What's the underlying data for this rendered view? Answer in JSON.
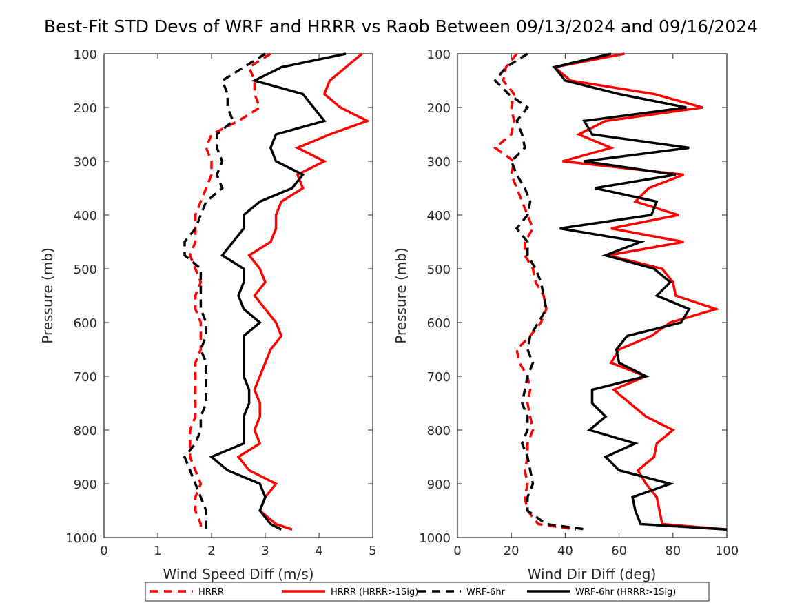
{
  "title": "Best-Fit STD Devs of WRF and HRRR vs Raob Between 09/13/2024 and 09/16/2024",
  "legend": {
    "placement": "bottom-outside",
    "entries": [
      {
        "label": "HRRR",
        "color": "#ff0000",
        "style": "dashed"
      },
      {
        "label": "HRRR (HRRR>1Sig)",
        "color": "#ff0000",
        "style": "solid"
      },
      {
        "label": "WRF-6hr",
        "color": "#000000",
        "style": "dashed"
      },
      {
        "label": "WRF-6hr (HRRR>1Sig)",
        "color": "#000000",
        "style": "solid"
      }
    ]
  },
  "chart_data": [
    {
      "type": "line",
      "orientation": "vertical-profile",
      "xlabel": "Wind Speed Diff (m/s)",
      "ylabel": "Pressure (mb)",
      "xlim": [
        0,
        5
      ],
      "ylim": [
        100,
        1000
      ],
      "y_reversed": true,
      "xticks": [
        0,
        1,
        2,
        3,
        4,
        5
      ],
      "yticks": [
        100,
        200,
        300,
        400,
        500,
        600,
        700,
        800,
        900,
        1000
      ],
      "pressure": [
        100,
        125,
        150,
        175,
        200,
        225,
        250,
        275,
        300,
        325,
        350,
        375,
        400,
        425,
        450,
        475,
        500,
        525,
        550,
        575,
        600,
        625,
        650,
        675,
        700,
        725,
        750,
        775,
        800,
        825,
        850,
        875,
        900,
        925,
        950,
        975,
        985
      ],
      "series": [
        {
          "name": "HRRR",
          "color": "#ff0000",
          "style": "dashed",
          "values": [
            3.1,
            2.7,
            2.8,
            2.8,
            2.9,
            2.5,
            2.0,
            1.9,
            2.0,
            2.0,
            1.9,
            1.8,
            1.7,
            1.7,
            1.7,
            1.6,
            1.7,
            1.8,
            1.7,
            1.7,
            1.8,
            1.8,
            1.8,
            1.7,
            1.7,
            1.7,
            1.7,
            1.7,
            1.6,
            1.6,
            1.6,
            1.7,
            1.8,
            1.7,
            1.7,
            1.8,
            1.8
          ]
        },
        {
          "name": "HRRR (HRRR>1Sig)",
          "color": "#ff0000",
          "style": "solid",
          "values": [
            4.8,
            4.5,
            4.2,
            4.1,
            4.4,
            4.9,
            4.2,
            3.6,
            4.1,
            3.6,
            3.7,
            3.3,
            3.2,
            3.2,
            3.1,
            2.7,
            2.9,
            3.0,
            2.8,
            3.0,
            3.2,
            3.3,
            3.1,
            3.0,
            2.9,
            2.8,
            2.9,
            2.9,
            2.8,
            2.9,
            2.5,
            2.7,
            3.2,
            3.0,
            2.9,
            3.2,
            3.5
          ]
        },
        {
          "name": "WRF-6hr",
          "color": "#000000",
          "style": "dashed",
          "values": [
            3.0,
            2.6,
            2.2,
            2.3,
            2.3,
            2.4,
            2.1,
            2.1,
            2.2,
            2.1,
            2.2,
            1.9,
            1.8,
            1.7,
            1.5,
            1.5,
            1.8,
            1.8,
            1.8,
            1.8,
            1.9,
            1.9,
            1.8,
            1.9,
            1.9,
            1.9,
            1.9,
            1.8,
            1.8,
            1.7,
            1.5,
            1.6,
            1.7,
            1.8,
            1.9,
            1.9,
            1.9
          ]
        },
        {
          "name": "WRF-6hr (HRRR>1Sig)",
          "color": "#000000",
          "style": "solid",
          "values": [
            4.5,
            3.3,
            2.8,
            3.7,
            3.9,
            4.1,
            3.2,
            3.1,
            3.2,
            3.7,
            3.5,
            2.9,
            2.6,
            2.6,
            2.4,
            2.2,
            2.6,
            2.6,
            2.5,
            2.6,
            2.9,
            2.6,
            2.6,
            2.6,
            2.6,
            2.7,
            2.7,
            2.6,
            2.6,
            2.6,
            2.0,
            2.3,
            2.9,
            3.0,
            2.9,
            3.1,
            3.3
          ]
        }
      ]
    },
    {
      "type": "line",
      "orientation": "vertical-profile",
      "xlabel": "Wind Dir Diff (deg)",
      "ylabel": "Pressure (mb)",
      "xlim": [
        0,
        100
      ],
      "ylim": [
        100,
        1000
      ],
      "y_reversed": true,
      "xticks": [
        0,
        20,
        40,
        60,
        80,
        100
      ],
      "yticks": [
        100,
        200,
        300,
        400,
        500,
        600,
        700,
        800,
        900,
        1000
      ],
      "pressure": [
        100,
        125,
        150,
        175,
        200,
        225,
        250,
        275,
        300,
        325,
        350,
        375,
        400,
        425,
        450,
        475,
        500,
        525,
        550,
        575,
        600,
        625,
        650,
        675,
        700,
        725,
        750,
        775,
        800,
        825,
        850,
        875,
        900,
        925,
        950,
        975,
        985
      ],
      "series": [
        {
          "name": "HRRR",
          "color": "#ff0000",
          "style": "dashed",
          "values": [
            22,
            18,
            17,
            21,
            20,
            21,
            20,
            14,
            21,
            20,
            22,
            24,
            26,
            28,
            25,
            25,
            28,
            29,
            32,
            33,
            31,
            27,
            22,
            23,
            26,
            27,
            26,
            27,
            28,
            26,
            26,
            25,
            26,
            25,
            26,
            30,
            44
          ]
        },
        {
          "name": "HRRR (HRRR>1Sig)",
          "color": "#ff0000",
          "style": "solid",
          "values": [
            62,
            36,
            42,
            73,
            91,
            55,
            45,
            57,
            39,
            84,
            71,
            66,
            82,
            57,
            84,
            56,
            76,
            80,
            81,
            96,
            79,
            72,
            60,
            57,
            70,
            58,
            64,
            70,
            80,
            74,
            73,
            67,
            70,
            74,
            75,
            76,
            100
          ]
        },
        {
          "name": "WRF-6hr",
          "color": "#000000",
          "style": "dashed",
          "values": [
            26,
            18,
            14,
            19,
            26,
            22,
            24,
            25,
            20,
            22,
            25,
            27,
            26,
            22,
            26,
            26,
            29,
            31,
            32,
            33,
            30,
            27,
            26,
            28,
            26,
            25,
            24,
            26,
            26,
            24,
            26,
            27,
            28,
            26,
            26,
            33,
            48
          ]
        },
        {
          "name": "WRF-6hr (HRRR>1Sig)",
          "color": "#000000",
          "style": "solid",
          "values": [
            57,
            36,
            40,
            60,
            85,
            47,
            50,
            86,
            47,
            81,
            51,
            74,
            72,
            38,
            68,
            55,
            73,
            79,
            74,
            86,
            83,
            63,
            59,
            60,
            70,
            50,
            50,
            55,
            49,
            66,
            55,
            60,
            79,
            65,
            66,
            68,
            100
          ]
        }
      ]
    }
  ]
}
